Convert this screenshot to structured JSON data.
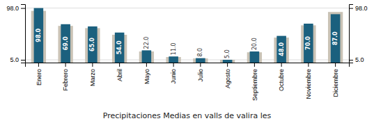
{
  "chart_data": {
    "type": "bar",
    "title": "Precipitaciones Medias en valls de valira les",
    "categories": [
      "Enero",
      "Febrero",
      "Marzo",
      "Abril",
      "Mayo",
      "Junio",
      "Julio",
      "Agosto",
      "Septiembre",
      "Octubre",
      "Noviembre",
      "Diciembre"
    ],
    "series": [
      {
        "color": "#c9c2b5",
        "values": [
          93.0,
          66.0,
          62.0,
          50.0,
          20.0,
          10.0,
          7.5,
          5.0,
          18.5,
          45.0,
          67.0,
          91.0
        ]
      },
      {
        "color": "#1b607e",
        "values": [
          98.0,
          69.0,
          65.0,
          54.0,
          22.0,
          11.0,
          8.0,
          5.0,
          20.0,
          48.0,
          70.0,
          87.0
        ],
        "data_labels": true,
        "value_labels": [
          "98.0",
          "69.0",
          "65.0",
          "54.0",
          "22.0",
          "11.0",
          "8.0",
          "5.0",
          "20.0",
          "48.0",
          "70.0",
          "87.0"
        ]
      }
    ],
    "ylim": [
      0,
      105
    ],
    "yticks": [
      {
        "value": 5,
        "label": "5.0"
      },
      {
        "value": 98,
        "label": "98.0"
      }
    ],
    "y2lim": [
      0,
      105
    ],
    "y2ticks": [
      {
        "value": 5,
        "label": "5.0"
      },
      {
        "value": 98,
        "label": "98.0"
      }
    ],
    "grid": true
  }
}
